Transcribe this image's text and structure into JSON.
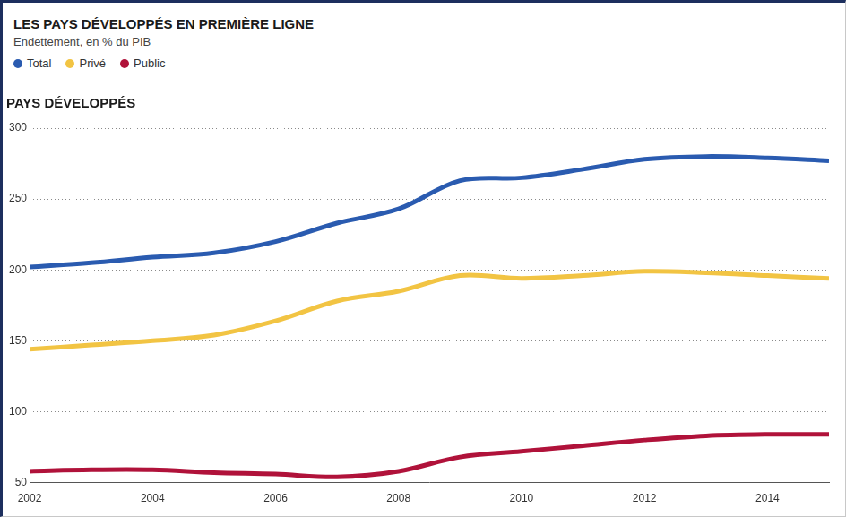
{
  "chart_data": {
    "type": "line",
    "title": "LES PAYS DÉVELOPPÉS EN PREMIÈRE LIGNE",
    "subtitle": "Endettement, en % du PIB",
    "panel_title": "PAYS DÉVELOPPÉS",
    "x": [
      2002,
      2003,
      2004,
      2005,
      2006,
      2007,
      2008,
      2009,
      2010,
      2011,
      2012,
      2013,
      2014,
      2015
    ],
    "series": [
      {
        "name": "Total",
        "color": "#2a5bb0",
        "values": [
          202,
          205,
          209,
          212,
          220,
          233,
          243,
          263,
          265,
          271,
          278,
          280,
          279,
          277
        ]
      },
      {
        "name": "Privé",
        "color": "#f2c443",
        "values": [
          144,
          147,
          150,
          154,
          164,
          178,
          185,
          196,
          194,
          196,
          199,
          198,
          196,
          194
        ]
      },
      {
        "name": "Public",
        "color": "#b0123a",
        "values": [
          58,
          59,
          59,
          57,
          56,
          54,
          58,
          68,
          72,
          76,
          80,
          83,
          84,
          84
        ]
      }
    ],
    "xlim": [
      2002,
      2015
    ],
    "xticks": [
      2002,
      2004,
      2006,
      2008,
      2010,
      2012,
      2014
    ],
    "ylim": [
      50,
      300
    ],
    "yticks": [
      50,
      100,
      150,
      200,
      250,
      300
    ],
    "grid": true,
    "legend": "top-left"
  }
}
